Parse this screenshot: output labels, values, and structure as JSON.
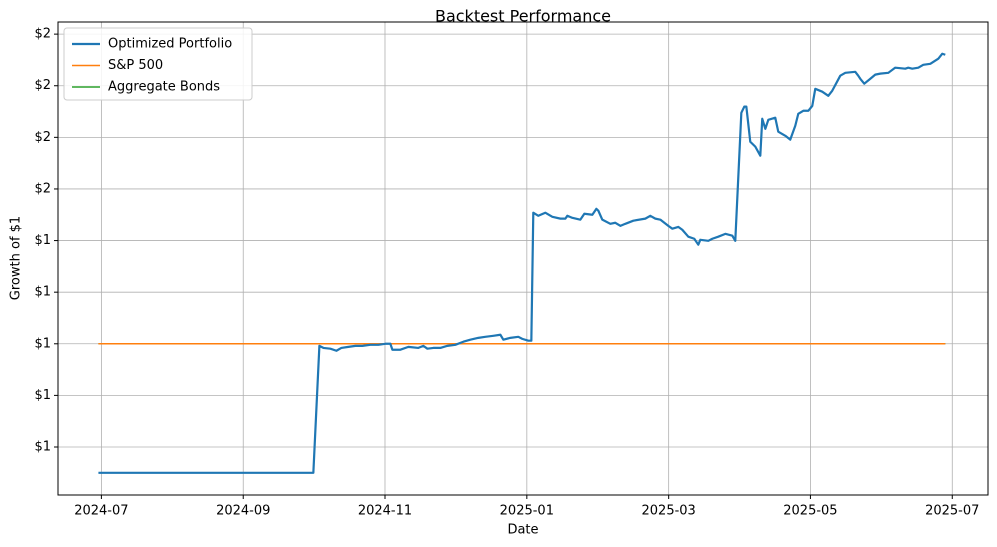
{
  "chart_data": {
    "type": "line",
    "title": "Backtest Performance",
    "x_label": "Date",
    "y_label": "Growth of $1",
    "grid": true,
    "legend": "upper left",
    "xlim": [
      2024.449,
      2025.542
    ],
    "ylim": [
      0.414,
      2.247
    ],
    "xticks": [
      {
        "value": 2024.5,
        "label": "2024-07"
      },
      {
        "value": 2024.6667,
        "label": "2024-09"
      },
      {
        "value": 2024.8333,
        "label": "2024-11"
      },
      {
        "value": 2025.0,
        "label": "2025-01"
      },
      {
        "value": 2025.1667,
        "label": "2025-03"
      },
      {
        "value": 2025.3333,
        "label": "2025-05"
      },
      {
        "value": 2025.5,
        "label": "2025-07"
      }
    ],
    "yticks": [
      {
        "value": 0.6,
        "label": "$1"
      },
      {
        "value": 0.8,
        "label": "$1"
      },
      {
        "value": 1.0,
        "label": "$1"
      },
      {
        "value": 1.2,
        "label": "$1"
      },
      {
        "value": 1.4,
        "label": "$1"
      },
      {
        "value": 1.6,
        "label": "$2"
      },
      {
        "value": 1.8,
        "label": "$2"
      },
      {
        "value": 2.0,
        "label": "$2"
      },
      {
        "value": 2.2,
        "label": "$2"
      }
    ],
    "series": [
      {
        "name": "Optimized Portfolio",
        "color": "#1f77b4",
        "width": 2.2,
        "x": [
          2024.4965,
          2024.7491,
          2024.7562,
          2024.7609,
          2024.7691,
          2024.7762,
          2024.782,
          2024.7903,
          2024.7985,
          2024.8067,
          2024.8161,
          2024.8255,
          2024.8337,
          2024.8396,
          2024.842,
          2024.8514,
          2024.8608,
          2024.8725,
          2024.8784,
          2024.8831,
          2024.8901,
          2024.8984,
          2024.9066,
          2024.916,
          2024.9254,
          2024.9336,
          2024.943,
          2024.9512,
          2024.9606,
          2024.9689,
          2024.9724,
          2024.9806,
          2024.99,
          2024.9947,
          2025.0018,
          2025.0053,
          2025.0076,
          2025.0135,
          2025.0217,
          2025.03,
          2025.0394,
          2025.0453,
          2025.0476,
          2025.0535,
          2025.0629,
          2025.0676,
          2025.077,
          2025.0817,
          2025.084,
          2025.0887,
          2025.0981,
          2025.104,
          2025.1099,
          2025.1158,
          2025.1252,
          2025.1393,
          2025.1451,
          2025.151,
          2025.1569,
          2025.1663,
          2025.171,
          2025.178,
          2025.1827,
          2025.1898,
          2025.1968,
          2025.2015,
          2025.2039,
          2025.2133,
          2025.218,
          2025.225,
          2025.2333,
          2025.2415,
          2025.245,
          2025.2521,
          2025.2556,
          2025.258,
          2025.2626,
          2025.2685,
          2025.2744,
          2025.2767,
          2025.2803,
          2025.2838,
          2025.292,
          2025.2955,
          2025.3038,
          2025.3096,
          2025.3155,
          2025.319,
          2025.3249,
          2025.3308,
          2025.3355,
          2025.339,
          2025.3472,
          2025.3543,
          2025.359,
          2025.3684,
          2025.3743,
          2025.386,
          2025.3895,
          2025.3919,
          2025.3966,
          2025.4037,
          2025.4095,
          2025.4154,
          2025.4248,
          2025.433,
          2025.4448,
          2025.4483,
          2025.453,
          2025.4601,
          2025.4659,
          2025.4742,
          2025.4836,
          2025.4883,
          2025.4918
        ],
        "values": [
          0.5,
          0.5,
          0.992,
          0.984,
          0.981,
          0.973,
          0.984,
          0.988,
          0.992,
          0.992,
          0.996,
          0.996,
          1.0,
          1.0,
          0.977,
          0.977,
          0.988,
          0.984,
          0.992,
          0.981,
          0.984,
          0.984,
          0.992,
          0.996,
          1.008,
          1.016,
          1.023,
          1.027,
          1.031,
          1.035,
          1.016,
          1.023,
          1.027,
          1.019,
          1.012,
          1.012,
          1.508,
          1.496,
          1.508,
          1.492,
          1.485,
          1.485,
          1.496,
          1.488,
          1.481,
          1.504,
          1.5,
          1.523,
          1.516,
          1.481,
          1.465,
          1.469,
          1.457,
          1.465,
          1.477,
          1.485,
          1.496,
          1.485,
          1.481,
          1.457,
          1.446,
          1.453,
          1.442,
          1.415,
          1.407,
          1.384,
          1.403,
          1.399,
          1.407,
          1.415,
          1.426,
          1.419,
          1.399,
          1.895,
          1.919,
          1.919,
          1.783,
          1.764,
          1.729,
          1.872,
          1.833,
          1.868,
          1.876,
          1.822,
          1.806,
          1.791,
          1.845,
          1.891,
          1.903,
          1.903,
          1.922,
          1.988,
          1.977,
          1.961,
          1.981,
          2.039,
          2.05,
          2.054,
          2.039,
          2.027,
          2.008,
          2.027,
          2.043,
          2.047,
          2.05,
          2.07,
          2.066,
          2.07,
          2.066,
          2.07,
          2.081,
          2.085,
          2.105,
          2.124,
          2.12
        ]
      },
      {
        "name": "S&P 500",
        "color": "#ff7f0e",
        "width": 1.5,
        "x": [
          2024.4965,
          2025.4918
        ],
        "values": [
          1.0,
          1.0
        ]
      },
      {
        "name": "Aggregate Bonds",
        "color": "#2ca02c",
        "width": 1.5,
        "x": [
          2024.4965,
          2025.4918
        ],
        "values": [
          1.0,
          1.0
        ]
      }
    ]
  }
}
